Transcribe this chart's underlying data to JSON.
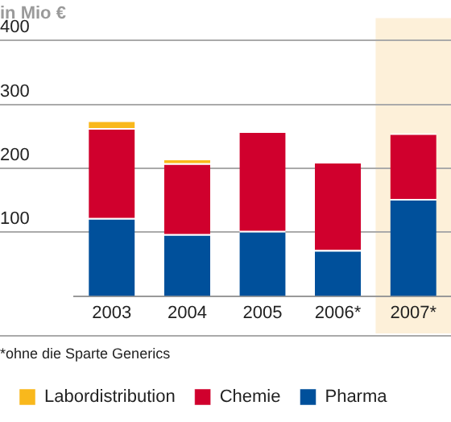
{
  "chart_data": {
    "type": "bar",
    "title": "in Mio €",
    "stacked": true,
    "categories": [
      "2003",
      "2004",
      "2005",
      "2006*",
      "2007*"
    ],
    "series": [
      {
        "name": "Pharma",
        "color": "#00509b",
        "values": [
          122,
          97,
          102,
          72,
          152
        ]
      },
      {
        "name": "Chemie",
        "color": "#d0002d",
        "values": [
          141,
          111,
          156,
          138,
          103
        ]
      },
      {
        "name": "Labordistribution",
        "color": "#f9b81c",
        "values": [
          12,
          7,
          null,
          null,
          null
        ]
      }
    ],
    "ylim": [
      0,
      400
    ],
    "yticks": [
      100,
      200,
      300,
      400
    ],
    "grid": "y",
    "legend": "bottom",
    "bands": [
      {
        "axis": "x",
        "from": "2007*",
        "to": "2007*",
        "color": "#fdf0d9"
      }
    ],
    "annotations": [
      "*ohne die Sparte Generics"
    ]
  }
}
